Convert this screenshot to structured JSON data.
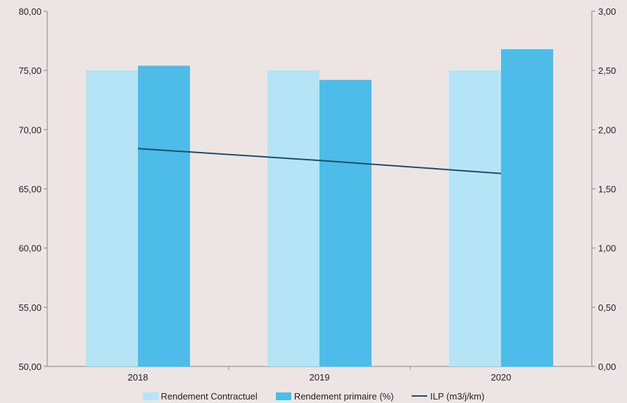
{
  "chart_data": {
    "type": "bar",
    "categories": [
      "2018",
      "2019",
      "2020"
    ],
    "series": [
      {
        "name": "Rendement Contractuel",
        "type": "bar",
        "axis": "left",
        "values": [
          75.0,
          75.0,
          75.0
        ],
        "color": "#b5e4f6"
      },
      {
        "name": "Rendement primaire (%)",
        "type": "bar",
        "axis": "left",
        "values": [
          75.4,
          74.2,
          76.8
        ],
        "color": "#4dbce9"
      },
      {
        "name": "ILP (m3/j/km)",
        "type": "line",
        "axis": "right",
        "values": [
          1.84,
          1.74,
          1.63
        ],
        "color": "#1a4e6e"
      }
    ],
    "y_left": {
      "min": 50,
      "max": 80,
      "ticks": [
        "50,00",
        "55,00",
        "60,00",
        "65,00",
        "70,00",
        "75,00",
        "80,00"
      ]
    },
    "y_right": {
      "min": 0,
      "max": 3,
      "ticks": [
        "0,00",
        "0,50",
        "1,00",
        "1,50",
        "2,00",
        "2,50",
        "3,00"
      ]
    },
    "grid": false,
    "legend": "bottom"
  }
}
